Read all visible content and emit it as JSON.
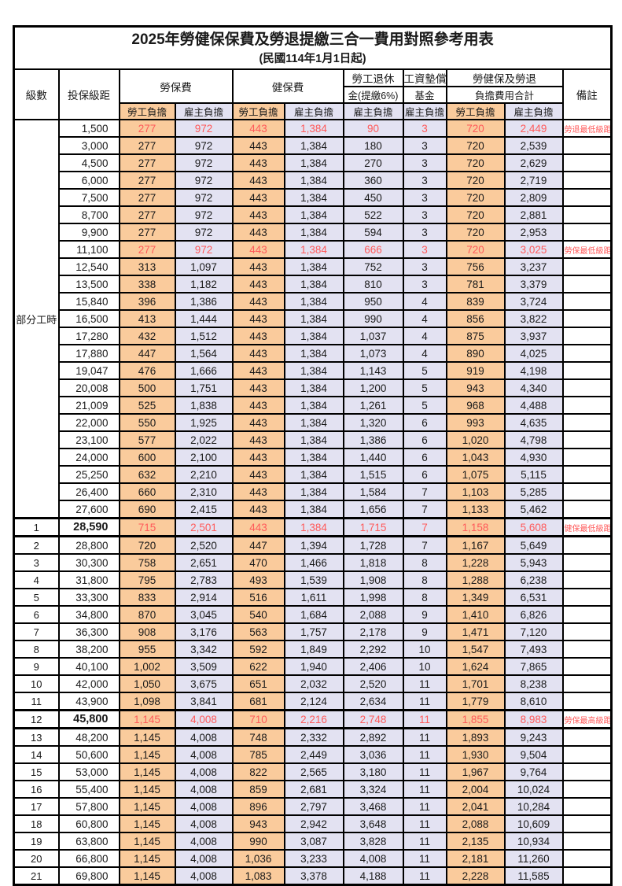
{
  "title": "2025年勞健保保費及勞退提繳三合一費用對照參考用表",
  "subtitle": "(民國114年1月1日起)",
  "colors": {
    "employee_burden_bg": "#FACB9C",
    "employer_burden_bg": "#E3E2F2",
    "highlight_red": "#FF5A5A",
    "border": "#000000"
  },
  "header": {
    "level": "級數",
    "salary_bracket": "投保級距",
    "labor_insurance": "勞保費",
    "health_insurance": "健保費",
    "pension_line1": "勞工退休",
    "pension_line2": "金(提繳6%)",
    "wage_fund_line1": "工資墊償",
    "wage_fund_line2": "基金",
    "total_line1": "勞健保及勞退",
    "total_line2": "負擔費用合計",
    "remarks": "備註",
    "employee_burden": "勞工負擔",
    "employer_burden": "雇主負擔"
  },
  "part_time_label": "部分工時",
  "part_time_rowspan": 23,
  "rows": [
    {
      "lv": null,
      "salary": "1,500",
      "v": [
        "277",
        "972",
        "443",
        "1,384",
        "90",
        "3",
        "720",
        "2,449"
      ],
      "remark": "勞退最低級距",
      "red": true
    },
    {
      "lv": null,
      "salary": "3,000",
      "v": [
        "277",
        "972",
        "443",
        "1,384",
        "180",
        "3",
        "720",
        "2,539"
      ],
      "remark": ""
    },
    {
      "lv": null,
      "salary": "4,500",
      "v": [
        "277",
        "972",
        "443",
        "1,384",
        "270",
        "3",
        "720",
        "2,629"
      ],
      "remark": ""
    },
    {
      "lv": null,
      "salary": "6,000",
      "v": [
        "277",
        "972",
        "443",
        "1,384",
        "360",
        "3",
        "720",
        "2,719"
      ],
      "remark": ""
    },
    {
      "lv": null,
      "salary": "7,500",
      "v": [
        "277",
        "972",
        "443",
        "1,384",
        "450",
        "3",
        "720",
        "2,809"
      ],
      "remark": ""
    },
    {
      "lv": null,
      "salary": "8,700",
      "v": [
        "277",
        "972",
        "443",
        "1,384",
        "522",
        "3",
        "720",
        "2,881"
      ],
      "remark": ""
    },
    {
      "lv": null,
      "salary": "9,900",
      "v": [
        "277",
        "972",
        "443",
        "1,384",
        "594",
        "3",
        "720",
        "2,953"
      ],
      "remark": ""
    },
    {
      "lv": null,
      "salary": "11,100",
      "v": [
        "277",
        "972",
        "443",
        "1,384",
        "666",
        "3",
        "720",
        "3,025"
      ],
      "remark": "勞保最低級距",
      "red": true
    },
    {
      "lv": null,
      "salary": "12,540",
      "v": [
        "313",
        "1,097",
        "443",
        "1,384",
        "752",
        "3",
        "756",
        "3,237"
      ],
      "remark": ""
    },
    {
      "lv": null,
      "salary": "13,500",
      "v": [
        "338",
        "1,182",
        "443",
        "1,384",
        "810",
        "3",
        "781",
        "3,379"
      ],
      "remark": ""
    },
    {
      "lv": null,
      "salary": "15,840",
      "v": [
        "396",
        "1,386",
        "443",
        "1,384",
        "950",
        "4",
        "839",
        "3,724"
      ],
      "remark": ""
    },
    {
      "lv": null,
      "salary": "16,500",
      "v": [
        "413",
        "1,444",
        "443",
        "1,384",
        "990",
        "4",
        "856",
        "3,822"
      ],
      "remark": ""
    },
    {
      "lv": null,
      "salary": "17,280",
      "v": [
        "432",
        "1,512",
        "443",
        "1,384",
        "1,037",
        "4",
        "875",
        "3,937"
      ],
      "remark": ""
    },
    {
      "lv": null,
      "salary": "17,880",
      "v": [
        "447",
        "1,564",
        "443",
        "1,384",
        "1,073",
        "4",
        "890",
        "4,025"
      ],
      "remark": ""
    },
    {
      "lv": null,
      "salary": "19,047",
      "v": [
        "476",
        "1,666",
        "443",
        "1,384",
        "1,143",
        "5",
        "919",
        "4,198"
      ],
      "remark": ""
    },
    {
      "lv": null,
      "salary": "20,008",
      "v": [
        "500",
        "1,751",
        "443",
        "1,384",
        "1,200",
        "5",
        "943",
        "4,340"
      ],
      "remark": ""
    },
    {
      "lv": null,
      "salary": "21,009",
      "v": [
        "525",
        "1,838",
        "443",
        "1,384",
        "1,261",
        "5",
        "968",
        "4,488"
      ],
      "remark": ""
    },
    {
      "lv": null,
      "salary": "22,000",
      "v": [
        "550",
        "1,925",
        "443",
        "1,384",
        "1,320",
        "6",
        "993",
        "4,635"
      ],
      "remark": ""
    },
    {
      "lv": null,
      "salary": "23,100",
      "v": [
        "577",
        "2,022",
        "443",
        "1,384",
        "1,386",
        "6",
        "1,020",
        "4,798"
      ],
      "remark": ""
    },
    {
      "lv": null,
      "salary": "24,000",
      "v": [
        "600",
        "2,100",
        "443",
        "1,384",
        "1,440",
        "6",
        "1,043",
        "4,930"
      ],
      "remark": ""
    },
    {
      "lv": null,
      "salary": "25,250",
      "v": [
        "632",
        "2,210",
        "443",
        "1,384",
        "1,515",
        "6",
        "1,075",
        "5,115"
      ],
      "remark": ""
    },
    {
      "lv": null,
      "salary": "26,400",
      "v": [
        "660",
        "2,310",
        "443",
        "1,384",
        "1,584",
        "7",
        "1,103",
        "5,285"
      ],
      "remark": ""
    },
    {
      "lv": null,
      "salary": "27,600",
      "v": [
        "690",
        "2,415",
        "443",
        "1,384",
        "1,656",
        "7",
        "1,133",
        "5,462"
      ],
      "remark": ""
    },
    {
      "lv": "1",
      "salary": "28,590",
      "v": [
        "715",
        "2,501",
        "443",
        "1,384",
        "1,715",
        "7",
        "1,158",
        "5,608"
      ],
      "remark": "健保最低級距",
      "red": true,
      "strong": true,
      "bold": true
    },
    {
      "lv": "2",
      "salary": "28,800",
      "v": [
        "720",
        "2,520",
        "447",
        "1,394",
        "1,728",
        "7",
        "1,167",
        "5,649"
      ],
      "remark": ""
    },
    {
      "lv": "3",
      "salary": "30,300",
      "v": [
        "758",
        "2,651",
        "470",
        "1,466",
        "1,818",
        "8",
        "1,228",
        "5,943"
      ],
      "remark": ""
    },
    {
      "lv": "4",
      "salary": "31,800",
      "v": [
        "795",
        "2,783",
        "493",
        "1,539",
        "1,908",
        "8",
        "1,288",
        "6,238"
      ],
      "remark": ""
    },
    {
      "lv": "5",
      "salary": "33,300",
      "v": [
        "833",
        "2,914",
        "516",
        "1,611",
        "1,998",
        "8",
        "1,349",
        "6,531"
      ],
      "remark": ""
    },
    {
      "lv": "6",
      "salary": "34,800",
      "v": [
        "870",
        "3,045",
        "540",
        "1,684",
        "2,088",
        "9",
        "1,410",
        "6,826"
      ],
      "remark": ""
    },
    {
      "lv": "7",
      "salary": "36,300",
      "v": [
        "908",
        "3,176",
        "563",
        "1,757",
        "2,178",
        "9",
        "1,471",
        "7,120"
      ],
      "remark": ""
    },
    {
      "lv": "8",
      "salary": "38,200",
      "v": [
        "955",
        "3,342",
        "592",
        "1,849",
        "2,292",
        "10",
        "1,547",
        "7,493"
      ],
      "remark": ""
    },
    {
      "lv": "9",
      "salary": "40,100",
      "v": [
        "1,002",
        "3,509",
        "622",
        "1,940",
        "2,406",
        "10",
        "1,624",
        "7,865"
      ],
      "remark": ""
    },
    {
      "lv": "10",
      "salary": "42,000",
      "v": [
        "1,050",
        "3,675",
        "651",
        "2,032",
        "2,520",
        "11",
        "1,701",
        "8,238"
      ],
      "remark": ""
    },
    {
      "lv": "11",
      "salary": "43,900",
      "v": [
        "1,098",
        "3,841",
        "681",
        "2,124",
        "2,634",
        "11",
        "1,779",
        "8,610"
      ],
      "remark": ""
    },
    {
      "lv": "12",
      "salary": "45,800",
      "v": [
        "1,145",
        "4,008",
        "710",
        "2,216",
        "2,748",
        "11",
        "1,855",
        "8,983"
      ],
      "remark": "勞保最高級距",
      "red": true,
      "strong": true,
      "bold": true
    },
    {
      "lv": "13",
      "salary": "48,200",
      "v": [
        "1,145",
        "4,008",
        "748",
        "2,332",
        "2,892",
        "11",
        "1,893",
        "9,243"
      ],
      "remark": ""
    },
    {
      "lv": "14",
      "salary": "50,600",
      "v": [
        "1,145",
        "4,008",
        "785",
        "2,449",
        "3,036",
        "11",
        "1,930",
        "9,504"
      ],
      "remark": ""
    },
    {
      "lv": "15",
      "salary": "53,000",
      "v": [
        "1,145",
        "4,008",
        "822",
        "2,565",
        "3,180",
        "11",
        "1,967",
        "9,764"
      ],
      "remark": ""
    },
    {
      "lv": "16",
      "salary": "55,400",
      "v": [
        "1,145",
        "4,008",
        "859",
        "2,681",
        "3,324",
        "11",
        "2,004",
        "10,024"
      ],
      "remark": ""
    },
    {
      "lv": "17",
      "salary": "57,800",
      "v": [
        "1,145",
        "4,008",
        "896",
        "2,797",
        "3,468",
        "11",
        "2,041",
        "10,284"
      ],
      "remark": ""
    },
    {
      "lv": "18",
      "salary": "60,800",
      "v": [
        "1,145",
        "4,008",
        "943",
        "2,942",
        "3,648",
        "11",
        "2,088",
        "10,609"
      ],
      "remark": ""
    },
    {
      "lv": "19",
      "salary": "63,800",
      "v": [
        "1,145",
        "4,008",
        "990",
        "3,087",
        "3,828",
        "11",
        "2,135",
        "10,934"
      ],
      "remark": ""
    },
    {
      "lv": "20",
      "salary": "66,800",
      "v": [
        "1,145",
        "4,008",
        "1,036",
        "3,233",
        "4,008",
        "11",
        "2,181",
        "11,260"
      ],
      "remark": ""
    },
    {
      "lv": "21",
      "salary": "69,800",
      "v": [
        "1,145",
        "4,008",
        "1,083",
        "3,378",
        "4,188",
        "11",
        "2,228",
        "11,585"
      ],
      "remark": ""
    }
  ]
}
